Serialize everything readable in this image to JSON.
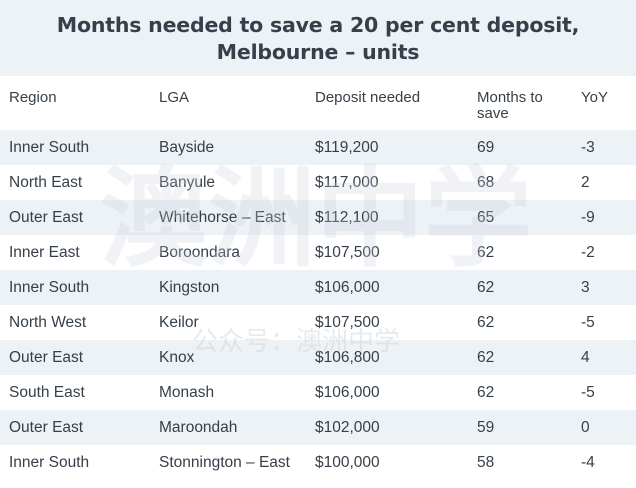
{
  "title": "Months needed to save a 20 per cent deposit, Melbourne – units",
  "columns": {
    "region": "Region",
    "lga": "LGA",
    "deposit": "Deposit needed",
    "months": "Months to save",
    "yoy": "YoY"
  },
  "rows": [
    {
      "region": "Inner South",
      "lga": "Bayside",
      "deposit": "$119,200",
      "months": "69",
      "yoy": "-3"
    },
    {
      "region": "North East",
      "lga": "Banyule",
      "deposit": "$117,000",
      "months": "68",
      "yoy": "2"
    },
    {
      "region": "Outer East",
      "lga": "Whitehorse – East",
      "deposit": "$112,100",
      "months": "65",
      "yoy": "-9"
    },
    {
      "region": "Inner East",
      "lga": "Boroondara",
      "deposit": "$107,500",
      "months": "62",
      "yoy": "-2"
    },
    {
      "region": "Inner South",
      "lga": "Kingston",
      "deposit": "$106,000",
      "months": "62",
      "yoy": "3"
    },
    {
      "region": "North West",
      "lga": "Keilor",
      "deposit": "$107,500",
      "months": "62",
      "yoy": "-5"
    },
    {
      "region": "Outer East",
      "lga": "Knox",
      "deposit": "$106,800",
      "months": "62",
      "yoy": "4"
    },
    {
      "region": "South East",
      "lga": "Monash",
      "deposit": "$106,000",
      "months": "62",
      "yoy": "-5"
    },
    {
      "region": "Outer East",
      "lga": "Maroondah",
      "deposit": "$102,000",
      "months": "59",
      "yoy": "0"
    },
    {
      "region": "Inner South",
      "lga": "Stonnington – East",
      "deposit": "$100,000",
      "months": "58",
      "yoy": "-4"
    }
  ],
  "watermark": {
    "large_text": "澳洲中学",
    "small_text": "公众号：澳洲中学"
  },
  "colors": {
    "band": "#edf2f6",
    "text": "#36404a",
    "background": "#ffffff"
  }
}
